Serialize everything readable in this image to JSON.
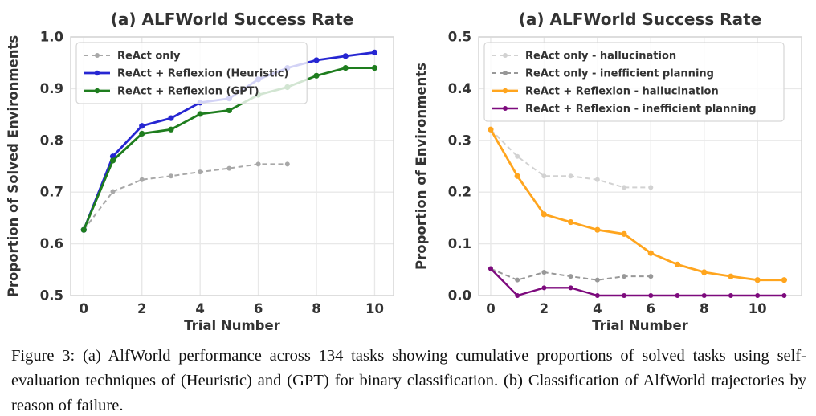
{
  "figure": {
    "caption": "Figure 3: (a) AlfWorld performance across 134 tasks showing cumulative proportions of solved tasks using self-evaluation techniques of (Heuristic) and (GPT) for binary classification. (b) Classification of AlfWorld trajectories by reason of failure."
  },
  "style": {
    "text_color": "#333333",
    "grid_color": "#e8e8e8",
    "frame_color": "#d6d6d6",
    "legend_bg": "#ffffff"
  },
  "chart_data": [
    {
      "type": "line",
      "title": "(a) ALFWorld Success Rate",
      "xlabel": "Trial Number",
      "ylabel": "Proportion of Solved Environments",
      "xlim": [
        -0.45,
        10.65
      ],
      "ylim": [
        0.5,
        1.0
      ],
      "xticks": [
        0,
        2,
        4,
        6,
        8,
        10
      ],
      "yticks": [
        0.5,
        0.6,
        0.7,
        0.8,
        0.9,
        1.0
      ],
      "ytick_decimals": 1,
      "grid": true,
      "legend_position": "upper left",
      "series": [
        {
          "name": "ReAct only",
          "color": "#a8a8a8",
          "line_style": "dashed",
          "line_width": 2,
          "marker": "circle",
          "marker_r": 3,
          "x": [
            0,
            1,
            2,
            3,
            4,
            5,
            6,
            7
          ],
          "values": [
            0.627,
            0.701,
            0.724,
            0.731,
            0.739,
            0.746,
            0.754,
            0.754
          ]
        },
        {
          "name": "ReAct + Reflexion (Heuristic)",
          "color": "#2626d2",
          "line_style": "solid",
          "line_width": 2.8,
          "marker": "circle",
          "marker_r": 3.6,
          "x": [
            0,
            1,
            2,
            3,
            4,
            5,
            6,
            7,
            8,
            9,
            10
          ],
          "values": [
            0.627,
            0.769,
            0.828,
            0.843,
            0.873,
            0.881,
            0.918,
            0.94,
            0.955,
            0.963,
            0.97
          ]
        },
        {
          "name": "ReAct + Reflexion (GPT)",
          "color": "#1e7d1e",
          "line_style": "solid",
          "line_width": 2.8,
          "marker": "circle",
          "marker_r": 3.6,
          "x": [
            0,
            1,
            2,
            3,
            4,
            5,
            6,
            7,
            8,
            9,
            10
          ],
          "values": [
            0.627,
            0.761,
            0.813,
            0.821,
            0.851,
            0.858,
            0.888,
            0.903,
            0.925,
            0.94,
            0.94
          ]
        }
      ]
    },
    {
      "type": "line",
      "title": "(a) ALFWorld Success Rate",
      "xlabel": "Trial Number",
      "ylabel": "Proportion of Environments",
      "xlim": [
        -0.45,
        11.65
      ],
      "ylim": [
        0.0,
        0.5
      ],
      "xticks": [
        0,
        2,
        4,
        6,
        8,
        10
      ],
      "yticks": [
        0.0,
        0.1,
        0.2,
        0.3,
        0.4,
        0.5
      ],
      "ytick_decimals": 1,
      "grid": true,
      "legend_position": "upper left",
      "series": [
        {
          "name": "ReAct only - hallucination",
          "color": "#d2d2d2",
          "line_style": "dashed",
          "line_width": 2,
          "marker": "circle",
          "marker_r": 3,
          "x": [
            0,
            1,
            2,
            3,
            4,
            5,
            6
          ],
          "values": [
            0.321,
            0.269,
            0.231,
            0.231,
            0.224,
            0.209,
            0.209
          ]
        },
        {
          "name": "ReAct only - inefficient planning",
          "color": "#989898",
          "line_style": "dashed",
          "line_width": 2,
          "marker": "circle",
          "marker_r": 3,
          "x": [
            0,
            1,
            2,
            3,
            4,
            5,
            6
          ],
          "values": [
            0.052,
            0.03,
            0.045,
            0.037,
            0.03,
            0.037,
            0.037
          ]
        },
        {
          "name": "ReAct + Reflexion - hallucination",
          "color": "#ffa51e",
          "line_style": "solid",
          "line_width": 2.8,
          "marker": "circle",
          "marker_r": 3.6,
          "x": [
            0,
            1,
            2,
            3,
            4,
            5,
            6,
            7,
            8,
            9,
            10,
            11
          ],
          "values": [
            0.321,
            0.231,
            0.157,
            0.142,
            0.127,
            0.119,
            0.082,
            0.06,
            0.045,
            0.037,
            0.03,
            0.03
          ]
        },
        {
          "name": "ReAct + Reflexion - inefficient planning",
          "color": "#7d0a7d",
          "line_style": "solid",
          "line_width": 2.4,
          "marker": "circle",
          "marker_r": 3,
          "x": [
            0,
            1,
            2,
            3,
            4,
            5,
            6,
            7,
            8,
            9,
            10,
            11
          ],
          "values": [
            0.052,
            0.0,
            0.015,
            0.015,
            0.0,
            0.0,
            0.0,
            0.0,
            0.0,
            0.0,
            0.0,
            0.0
          ]
        }
      ]
    }
  ]
}
